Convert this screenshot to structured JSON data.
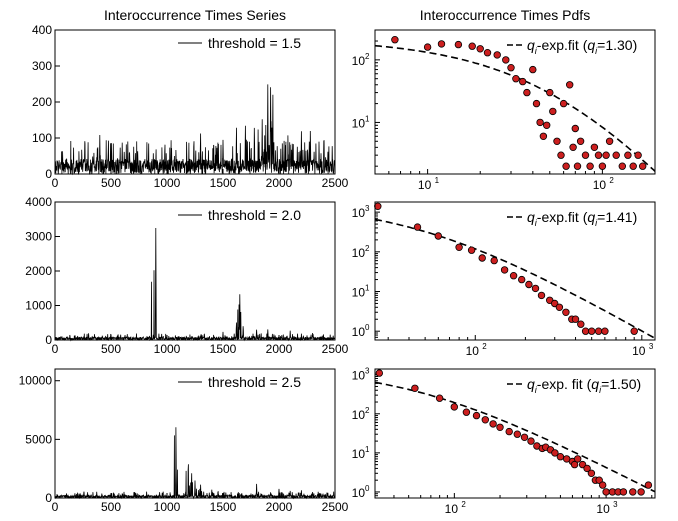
{
  "titles": {
    "left": "Interoccurrence Times Series",
    "right": "Interoccurrence Times Pdfs"
  },
  "chart_data": [
    {
      "type": "line",
      "scale": "linear",
      "xlim": [
        0,
        2500
      ],
      "ylim": [
        0,
        400
      ],
      "xticks": [
        0,
        500,
        1000,
        1500,
        2000,
        2500
      ],
      "yticks": [
        0,
        100,
        200,
        300,
        400
      ],
      "legend": "threshold = 1.5",
      "legend_position": "top-right",
      "baseline": 30,
      "noise_max": 60,
      "spikes": [
        [
          1900,
          310
        ],
        [
          1925,
          315
        ],
        [
          1945,
          250
        ],
        [
          1700,
          170
        ],
        [
          1780,
          165
        ],
        [
          1620,
          150
        ],
        [
          2200,
          140
        ],
        [
          2280,
          145
        ],
        [
          1300,
          115
        ],
        [
          400,
          110
        ],
        [
          650,
          100
        ],
        [
          2400,
          95
        ],
        [
          1080,
          95
        ],
        [
          2080,
          130
        ],
        [
          1500,
          120
        ],
        [
          1850,
          180
        ]
      ]
    },
    {
      "type": "scatter+fit",
      "scale": "log",
      "xlim": [
        5,
        200
      ],
      "ylim": [
        1.5,
        300
      ],
      "xticks": [
        10,
        100
      ],
      "yticks": [
        10,
        100
      ],
      "legend": "q-exp.fit (q=1.30)",
      "legend_parts": {
        "prefix": "q",
        "sub": "i",
        "mid": "-exp.fit (",
        "sub2": "i",
        "suffix": "=1.30)"
      },
      "points": [
        [
          6.5,
          210
        ],
        [
          10,
          160
        ],
        [
          12,
          180
        ],
        [
          15,
          175
        ],
        [
          18,
          165
        ],
        [
          20,
          150
        ],
        [
          22,
          130
        ],
        [
          25,
          120
        ],
        [
          28,
          100
        ],
        [
          30,
          75
        ],
        [
          32,
          50
        ],
        [
          35,
          45
        ],
        [
          37,
          30
        ],
        [
          40,
          70
        ],
        [
          42,
          20
        ],
        [
          44,
          10
        ],
        [
          46,
          6
        ],
        [
          48,
          9
        ],
        [
          50,
          30
        ],
        [
          52,
          15
        ],
        [
          55,
          5
        ],
        [
          58,
          3
        ],
        [
          60,
          20
        ],
        [
          62,
          2
        ],
        [
          65,
          40
        ],
        [
          68,
          4
        ],
        [
          70,
          8
        ],
        [
          72,
          2
        ],
        [
          75,
          5
        ],
        [
          80,
          3
        ],
        [
          85,
          2
        ],
        [
          90,
          4
        ],
        [
          95,
          3
        ],
        [
          100,
          2
        ],
        [
          105,
          3
        ],
        [
          110,
          5
        ],
        [
          120,
          3
        ],
        [
          130,
          2
        ],
        [
          140,
          3
        ],
        [
          150,
          2
        ],
        [
          160,
          3
        ],
        [
          170,
          2
        ]
      ],
      "fit": {
        "A": 220,
        "x0": 18,
        "q": 1.3
      }
    },
    {
      "type": "line",
      "scale": "linear",
      "xlim": [
        0,
        2500
      ],
      "ylim": [
        0,
        4000
      ],
      "xticks": [
        0,
        500,
        1000,
        1500,
        2000,
        2500
      ],
      "yticks": [
        0,
        1000,
        2000,
        3000,
        4000
      ],
      "legend": "threshold = 2.0",
      "legend_position": "top-right",
      "baseline": 60,
      "noise_max": 120,
      "spikes": [
        [
          900,
          3500
        ],
        [
          1650,
          1550
        ],
        [
          1620,
          700
        ],
        [
          1680,
          600
        ],
        [
          1800,
          400
        ],
        [
          1900,
          350
        ],
        [
          2100,
          300
        ],
        [
          2300,
          250
        ],
        [
          1500,
          250
        ],
        [
          300,
          200
        ]
      ]
    },
    {
      "type": "scatter+fit",
      "scale": "log",
      "xlim": [
        25,
        1200
      ],
      "ylim": [
        0.6,
        1800
      ],
      "xticks": [
        100,
        1000
      ],
      "yticks": [
        1,
        10,
        100,
        1000
      ],
      "legend": "q-exp.fit (q=1.41)",
      "legend_parts": {
        "prefix": "q",
        "sub": "i",
        "mid": "-exp.fit (",
        "sub2": "i",
        "suffix": "=1.41)"
      },
      "points": [
        [
          26,
          1400
        ],
        [
          45,
          420
        ],
        [
          60,
          250
        ],
        [
          80,
          130
        ],
        [
          95,
          110
        ],
        [
          110,
          70
        ],
        [
          130,
          60
        ],
        [
          150,
          35
        ],
        [
          170,
          25
        ],
        [
          190,
          20
        ],
        [
          210,
          15
        ],
        [
          230,
          12
        ],
        [
          250,
          8
        ],
        [
          280,
          6
        ],
        [
          300,
          5
        ],
        [
          320,
          4
        ],
        [
          350,
          3
        ],
        [
          380,
          2
        ],
        [
          400,
          2
        ],
        [
          430,
          1.5
        ],
        [
          460,
          1
        ],
        [
          500,
          1
        ],
        [
          550,
          1
        ],
        [
          600,
          1
        ],
        [
          900,
          1
        ]
      ],
      "fit": {
        "A": 1800,
        "x0": 20,
        "q": 1.41
      }
    },
    {
      "type": "line",
      "scale": "linear",
      "xlim": [
        0,
        2500
      ],
      "ylim": [
        0,
        11000
      ],
      "xticks": [
        0,
        500,
        1000,
        1500,
        2000,
        2500
      ],
      "yticks": [
        0,
        5000,
        10000
      ],
      "legend": "threshold = 2.5",
      "legend_position": "top-right",
      "baseline": 150,
      "noise_max": 350,
      "spikes": [
        [
          1080,
          7800
        ],
        [
          1190,
          4100
        ],
        [
          1220,
          2500
        ],
        [
          1250,
          1500
        ],
        [
          1300,
          1200
        ],
        [
          1400,
          900
        ],
        [
          1800,
          1300
        ],
        [
          2000,
          1000
        ],
        [
          2100,
          800
        ],
        [
          2200,
          700
        ],
        [
          2300,
          600
        ]
      ]
    },
    {
      "type": "scatter+fit",
      "scale": "log",
      "xlim": [
        30,
        2100
      ],
      "ylim": [
        0.7,
        1400
      ],
      "xticks": [
        100,
        1000
      ],
      "yticks": [
        1,
        10,
        100,
        1000
      ],
      "legend": "q-exp. fit (q=1.50)",
      "legend_parts": {
        "prefix": "q",
        "sub": "i",
        "mid": "-exp. fit (",
        "sub2": "i",
        "suffix": "=1.50)"
      },
      "points": [
        [
          32,
          1100
        ],
        [
          55,
          450
        ],
        [
          80,
          250
        ],
        [
          100,
          150
        ],
        [
          120,
          110
        ],
        [
          140,
          90
        ],
        [
          160,
          70
        ],
        [
          180,
          55
        ],
        [
          200,
          45
        ],
        [
          230,
          35
        ],
        [
          260,
          30
        ],
        [
          290,
          25
        ],
        [
          320,
          20
        ],
        [
          350,
          15
        ],
        [
          380,
          13
        ],
        [
          400,
          14
        ],
        [
          430,
          12
        ],
        [
          460,
          10
        ],
        [
          500,
          8
        ],
        [
          550,
          7
        ],
        [
          600,
          6
        ],
        [
          620,
          5
        ],
        [
          650,
          7
        ],
        [
          700,
          5
        ],
        [
          750,
          4
        ],
        [
          800,
          3
        ],
        [
          850,
          2
        ],
        [
          900,
          2
        ],
        [
          950,
          1.5
        ],
        [
          1000,
          1
        ],
        [
          1100,
          1
        ],
        [
          1200,
          1
        ],
        [
          1300,
          1
        ],
        [
          1500,
          1
        ],
        [
          1700,
          1
        ],
        [
          1900,
          1.5
        ]
      ],
      "fit": {
        "A": 1500,
        "x0": 28,
        "q": 1.5
      }
    }
  ]
}
